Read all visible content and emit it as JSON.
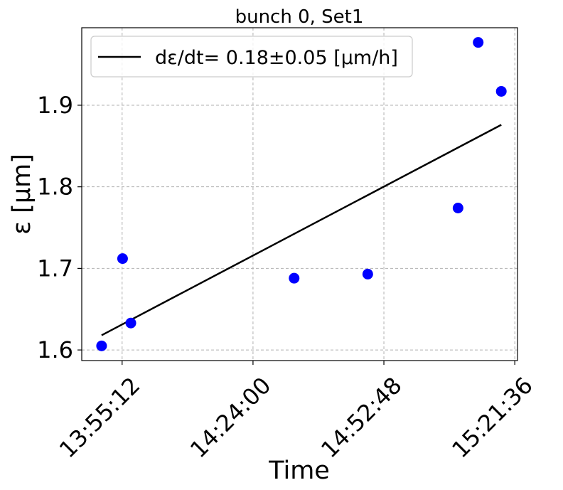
{
  "chart_data": {
    "type": "scatter",
    "title": "bunch 0, Set1",
    "xlabel": "Time",
    "ylabel": "ε [μm]",
    "x_unit": "time of day (HH:MM:SS)",
    "xlim": [
      "13:46:19",
      "15:22:12"
    ],
    "ylim": [
      1.587,
      1.995
    ],
    "x_ticks": [
      {
        "value": "13:55:12",
        "label": "13:55:12"
      },
      {
        "value": "14:24:00",
        "label": "14:24:00"
      },
      {
        "value": "14:52:48",
        "label": "14:52:48"
      },
      {
        "value": "15:21:36",
        "label": "15:21:36"
      }
    ],
    "y_ticks": [
      {
        "value": 1.6,
        "label": "1.6"
      },
      {
        "value": 1.7,
        "label": "1.7"
      },
      {
        "value": 1.8,
        "label": "1.8"
      },
      {
        "value": 1.9,
        "label": "1.9"
      }
    ],
    "grid": true,
    "grid_style": "dashed",
    "legend_position": "top-left",
    "series": [
      {
        "kind": "points",
        "color": "#0000ff",
        "points": [
          {
            "x": "13:50:41",
            "y": 1.605
          },
          {
            "x": "13:55:18",
            "y": 1.712
          },
          {
            "x": "13:57:07",
            "y": 1.633
          },
          {
            "x": "14:33:03",
            "y": 1.688
          },
          {
            "x": "14:49:15",
            "y": 1.693
          },
          {
            "x": "15:09:07",
            "y": 1.774
          },
          {
            "x": "15:13:33",
            "y": 1.977
          },
          {
            "x": "15:18:38",
            "y": 1.917
          }
        ]
      },
      {
        "kind": "fit-line",
        "name": "dε/dt= 0.18±0.05 [μm/h]",
        "color": "#000000",
        "points": [
          {
            "x": "13:50:41",
            "y": 1.618
          },
          {
            "x": "15:18:38",
            "y": 1.876
          }
        ]
      }
    ]
  }
}
